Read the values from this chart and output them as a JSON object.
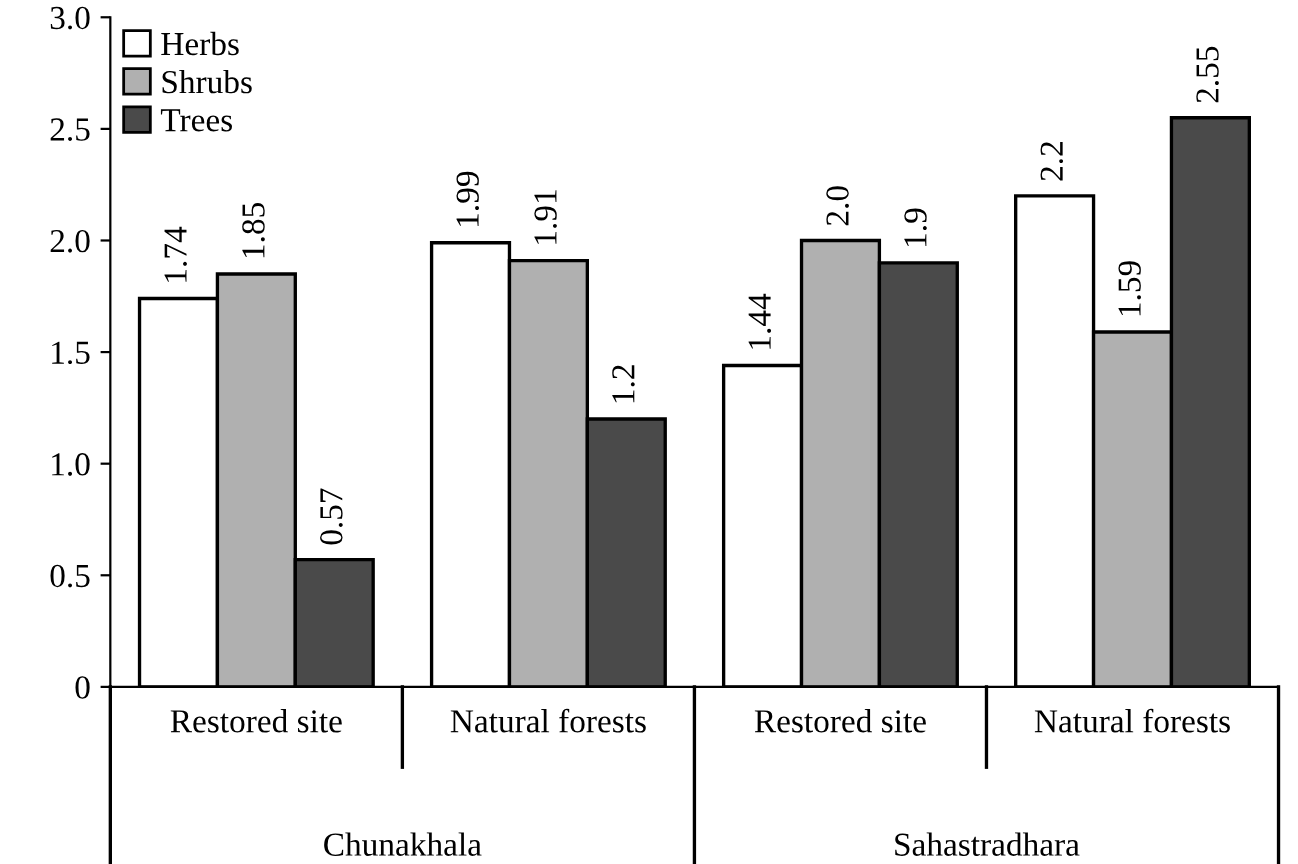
{
  "chart_data": {
    "type": "bar",
    "categories": [
      "Restored site",
      "Natural forests",
      "Restored site",
      "Natural forests"
    ],
    "annotations": [
      "Chunakhala",
      "Sahastradhara"
    ],
    "series": [
      {
        "name": "Herbs",
        "color": "#ffffff",
        "values": [
          1.74,
          1.99,
          1.44,
          2.2
        ],
        "value_labels": [
          "1.74",
          "1.99",
          "1.44",
          "2.2"
        ]
      },
      {
        "name": "Shrubs",
        "color": "#b0b0b0",
        "values": [
          1.85,
          1.91,
          2.0,
          1.59
        ],
        "value_labels": [
          "1.85",
          "1.91",
          "2.0",
          "1.59"
        ]
      },
      {
        "name": "Trees",
        "color": "#4a4a4a",
        "values": [
          0.57,
          1.2,
          1.9,
          2.55
        ],
        "value_labels": [
          "0.57",
          "1.2",
          "1.9",
          "2.55"
        ]
      }
    ],
    "ylim": [
      0,
      3.0
    ],
    "yticks": [
      0,
      {
        "value": 0.5,
        "label": "0.5"
      },
      {
        "value": 1.0,
        "label": "1.0"
      },
      {
        "value": 1.5,
        "label": "1.5"
      },
      {
        "value": 2.0,
        "label": "2.0"
      },
      {
        "value": 2.5,
        "label": "2.5"
      },
      {
        "value": 3.0,
        "label": "3.0"
      }
    ],
    "grid": false,
    "legend": "top left"
  }
}
